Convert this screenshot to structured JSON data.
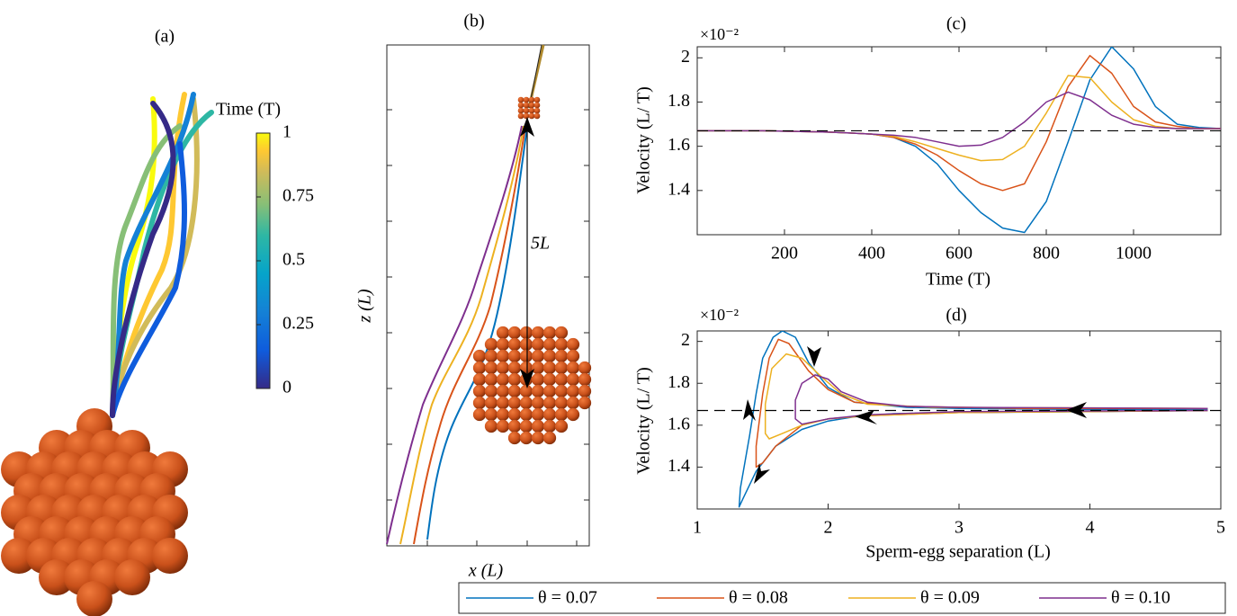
{
  "chart_data": [
    {
      "type": "colorbar",
      "title": "(a)",
      "colorbar_label": "Time (T)",
      "clim": [
        0,
        1
      ],
      "ticks": [
        0,
        0.25,
        0.5,
        0.75,
        1
      ]
    },
    {
      "type": "trajectory",
      "title": "(b)",
      "xlabel": "x (L)",
      "ylabel": "z (L)",
      "annotation": "5L"
    },
    {
      "type": "line",
      "title": "(c)",
      "xlabel": "Time (T)",
      "ylabel": "Velocity (L/ T)",
      "y_multiplier": "×10⁻²",
      "xlim": [
        0,
        1200
      ],
      "xticks": [
        200,
        400,
        600,
        800,
        1000
      ],
      "ylim": [
        1.2,
        2.05
      ],
      "yticks": [
        1.4,
        1.6,
        1.8,
        2
      ],
      "reference_line": 1.67,
      "x": [
        0,
        50,
        100,
        150,
        200,
        250,
        300,
        350,
        400,
        450,
        500,
        550,
        600,
        650,
        700,
        750,
        800,
        850,
        900,
        950,
        1000,
        1050,
        1100,
        1150,
        1200
      ],
      "series": [
        {
          "name": "θ = 0.07",
          "color": "#0072bd",
          "values": [
            1.67,
            1.67,
            1.67,
            1.67,
            1.668,
            1.666,
            1.664,
            1.66,
            1.655,
            1.64,
            1.6,
            1.52,
            1.4,
            1.3,
            1.23,
            1.21,
            1.35,
            1.62,
            1.9,
            2.05,
            1.95,
            1.78,
            1.7,
            1.685,
            1.68
          ]
        },
        {
          "name": "θ = 0.08",
          "color": "#d95319",
          "values": [
            1.67,
            1.67,
            1.67,
            1.67,
            1.668,
            1.666,
            1.664,
            1.66,
            1.655,
            1.64,
            1.61,
            1.56,
            1.49,
            1.43,
            1.4,
            1.43,
            1.62,
            1.87,
            2.01,
            1.93,
            1.78,
            1.71,
            1.69,
            1.68,
            1.68
          ]
        },
        {
          "name": "θ = 0.09",
          "color": "#edb120",
          "values": [
            1.67,
            1.67,
            1.67,
            1.67,
            1.668,
            1.666,
            1.664,
            1.66,
            1.655,
            1.645,
            1.62,
            1.59,
            1.56,
            1.535,
            1.54,
            1.6,
            1.75,
            1.92,
            1.91,
            1.8,
            1.72,
            1.69,
            1.68,
            1.68,
            1.68
          ]
        },
        {
          "name": "θ = 0.10",
          "color": "#7e2f8e",
          "values": [
            1.67,
            1.67,
            1.67,
            1.67,
            1.668,
            1.666,
            1.664,
            1.66,
            1.655,
            1.65,
            1.64,
            1.62,
            1.6,
            1.605,
            1.64,
            1.71,
            1.8,
            1.845,
            1.81,
            1.74,
            1.7,
            1.685,
            1.68,
            1.68,
            1.68
          ]
        }
      ]
    },
    {
      "type": "line",
      "title": "(d)",
      "xlabel": "Sperm-egg separation (L)",
      "ylabel": "Velocity (L/ T)",
      "y_multiplier": "×10⁻²",
      "xlim": [
        1,
        5
      ],
      "xticks": [
        1,
        2,
        3,
        4,
        5
      ],
      "ylim": [
        1.2,
        2.05
      ],
      "yticks": [
        1.4,
        1.6,
        1.8,
        2
      ],
      "reference_line": 1.67,
      "series": [
        {
          "color": "#0072bd",
          "x": [
            4.9,
            4,
            3,
            2.5,
            2.2,
            2,
            1.8,
            1.6,
            1.45,
            1.35,
            1.32,
            1.33,
            1.4,
            1.45,
            1.5,
            1.58,
            1.65,
            1.75,
            1.85,
            2,
            2.2,
            2.6,
            3,
            4,
            4.9
          ],
          "values": [
            1.67,
            1.665,
            1.66,
            1.655,
            1.64,
            1.62,
            1.58,
            1.5,
            1.38,
            1.25,
            1.21,
            1.3,
            1.55,
            1.75,
            1.92,
            2.02,
            2.05,
            2.02,
            1.9,
            1.78,
            1.71,
            1.685,
            1.68,
            1.675,
            1.675
          ]
        },
        {
          "color": "#d95319",
          "x": [
            4.9,
            3,
            2.3,
            2,
            1.8,
            1.6,
            1.5,
            1.45,
            1.45,
            1.5,
            1.55,
            1.62,
            1.7,
            1.85,
            2,
            2.2,
            2.6,
            3.5,
            4.9
          ],
          "values": [
            1.67,
            1.66,
            1.645,
            1.63,
            1.6,
            1.5,
            1.42,
            1.4,
            1.5,
            1.75,
            1.92,
            2.01,
            1.99,
            1.86,
            1.77,
            1.71,
            1.69,
            1.68,
            1.68
          ]
        },
        {
          "color": "#edb120",
          "x": [
            4.9,
            3,
            2.3,
            2,
            1.8,
            1.65,
            1.55,
            1.52,
            1.52,
            1.57,
            1.68,
            1.8,
            1.95,
            2.1,
            2.3,
            2.8,
            4.9
          ],
          "values": [
            1.67,
            1.66,
            1.645,
            1.63,
            1.6,
            1.56,
            1.535,
            1.56,
            1.7,
            1.87,
            1.94,
            1.92,
            1.83,
            1.75,
            1.7,
            1.685,
            1.68
          ]
        },
        {
          "color": "#7e2f8e",
          "x": [
            4.9,
            3,
            2.3,
            2,
            1.8,
            1.75,
            1.75,
            1.8,
            1.9,
            2,
            2.1,
            2.3,
            2.6,
            3,
            4.9
          ],
          "values": [
            1.67,
            1.665,
            1.65,
            1.63,
            1.605,
            1.63,
            1.72,
            1.8,
            1.84,
            1.82,
            1.76,
            1.71,
            1.69,
            1.685,
            1.68
          ]
        }
      ]
    }
  ]
}
